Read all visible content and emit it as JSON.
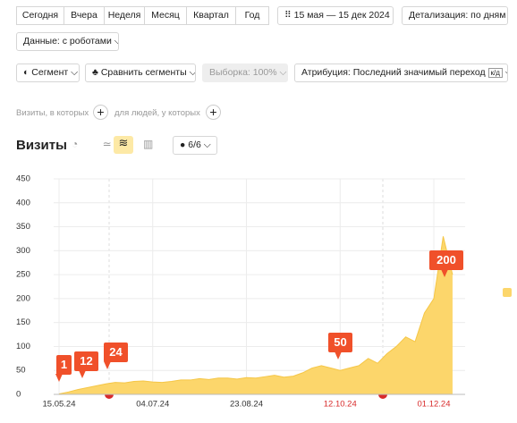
{
  "toolbar": {
    "periods": [
      "Сегодня",
      "Вчера",
      "Неделя",
      "Месяц",
      "Квартал",
      "Год"
    ],
    "date_range": "15 мая — 15 дек 2024",
    "detail": "Детализация: по дням",
    "data_mode": "Данные: с роботами",
    "segment": "Сегмент",
    "compare": "Сравнить сегменты",
    "sample": "Выборка: 100%",
    "attribution": "Атрибуция: Последний значимый переход",
    "attribution_tag": "к/д",
    "filter_visits": "Визиты, в которых",
    "filter_people": "для людей, у которых"
  },
  "chart_header": {
    "title": "Визиты",
    "counter": "6/6"
  },
  "chart_data": {
    "type": "area",
    "color": "#fcd66b",
    "line_color": "#f5c646",
    "grid": true,
    "categories": [
      "15.05.24",
      null,
      null,
      null,
      null,
      null,
      null,
      null,
      null,
      null,
      "04.07.24",
      null,
      null,
      null,
      null,
      null,
      null,
      null,
      null,
      null,
      "23.08.24",
      null,
      null,
      null,
      null,
      null,
      null,
      null,
      null,
      null,
      "12.10.24",
      null,
      null,
      null,
      null,
      null,
      null,
      null,
      null,
      null,
      "01.12.24",
      null,
      null
    ],
    "values": [
      1,
      5,
      10,
      14,
      18,
      22,
      25,
      24,
      27,
      28,
      26,
      25,
      27,
      30,
      30,
      33,
      31,
      34,
      34,
      32,
      35,
      34,
      37,
      40,
      36,
      38,
      45,
      55,
      60,
      55,
      50,
      55,
      60,
      75,
      65,
      85,
      100,
      120,
      110,
      170,
      200,
      330,
      250
    ],
    "annotations": [
      1,
      12,
      24,
      50,
      200
    ],
    "ylim": [
      0,
      450
    ],
    "yticks": [
      0,
      50,
      100,
      150,
      200,
      250,
      300,
      350,
      400,
      450
    ]
  }
}
